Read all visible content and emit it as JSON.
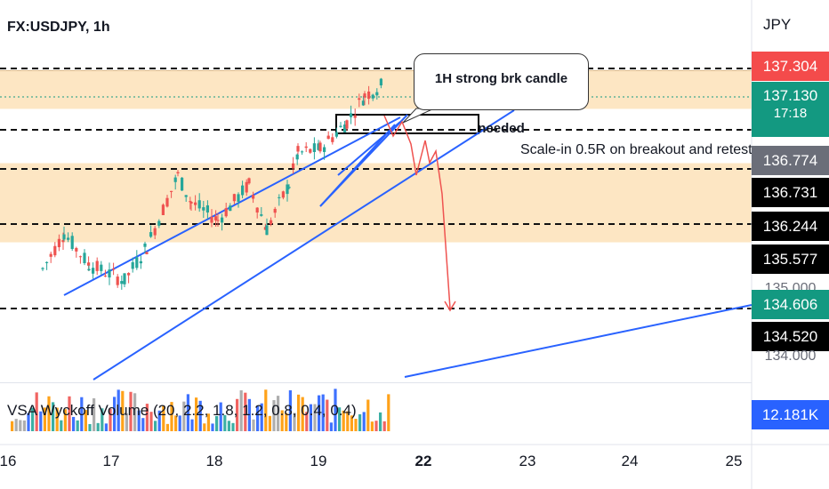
{
  "header": {
    "symbol_title": "FX:USDJPY, 1h",
    "currency": "JPY"
  },
  "price_tags": [
    {
      "label": "137.304",
      "color": "#f44b4b"
    },
    {
      "label": "137.130",
      "sub": "17:18",
      "color": "#139981"
    },
    {
      "label": "136.774",
      "color": "#6b6e79"
    },
    {
      "label": "136.731",
      "color": "#000000"
    },
    {
      "label": "136.244",
      "color": "#000000"
    },
    {
      "label": "135.577",
      "color": "#000000"
    },
    {
      "label": "134.606",
      "color": "#139981"
    },
    {
      "label": "134.520",
      "color": "#000000"
    }
  ],
  "partial_axis_labels": [
    "135.000",
    "134.000"
  ],
  "volume_indicator": {
    "label": "VSA Wyckoff Volume (20, 2.2, 1.8, 1.2, 0.8, 0.4, 0.4)",
    "value": "12.181K",
    "color": "#2962ff"
  },
  "annotations": {
    "callout": "1H strong brk candle needed",
    "scale_in_note": "Scale-in 0.5R on breakout and retest."
  },
  "x_axis": {
    "ticks": [
      "16",
      "17",
      "18",
      "19",
      "22",
      "23",
      "24",
      "25"
    ],
    "bold_tick": "22"
  },
  "chart_data": {
    "type": "candlestick",
    "symbol": "FX:USDJPY",
    "interval": "1h",
    "last_price": 137.13,
    "levels": [
      137.304,
      137.13,
      136.774,
      136.731,
      136.244,
      135.577,
      134.606,
      134.52
    ],
    "zones": [
      {
        "from": 136.85,
        "to": 137.28
      },
      {
        "from": 135.35,
        "to": 136.24
      }
    ],
    "colors": {
      "up": "#26a69a",
      "down": "#ef5350",
      "zone": "#fde6c3",
      "trendline": "#2962ff",
      "projection": "#ef5350"
    }
  }
}
